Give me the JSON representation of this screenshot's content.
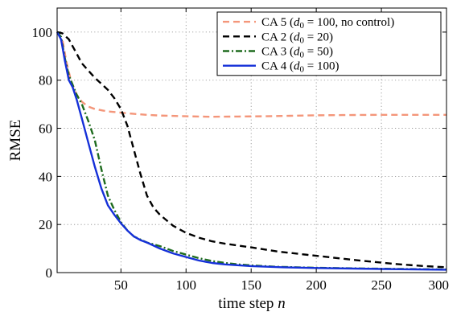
{
  "chart_data": {
    "type": "line",
    "xlabel": "time step n",
    "ylabel": "RMSE",
    "xlim": [
      1,
      300
    ],
    "ylim": [
      0,
      110
    ],
    "x_ticks": [
      50,
      100,
      150,
      200,
      250,
      300
    ],
    "y_ticks": [
      0,
      20,
      40,
      60,
      80,
      100
    ],
    "grid": true,
    "legend_position": "top-right",
    "series": [
      {
        "name": "CA 5 (d0 = 100, no control)",
        "legend_main": "CA 5 (",
        "legend_sub": "d",
        "legend_subscript": "0",
        "legend_rest": " = 100, no control)",
        "color": "#f4967a",
        "style": "dashed",
        "points": [
          [
            1,
            100
          ],
          [
            5,
            97
          ],
          [
            8,
            88
          ],
          [
            12,
            79
          ],
          [
            16,
            74
          ],
          [
            20,
            71
          ],
          [
            25,
            69
          ],
          [
            30,
            68
          ],
          [
            40,
            67
          ],
          [
            50,
            66.5
          ],
          [
            60,
            66
          ],
          [
            70,
            65.6
          ],
          [
            80,
            65.3
          ],
          [
            100,
            65
          ],
          [
            120,
            64.8
          ],
          [
            140,
            64.9
          ],
          [
            160,
            65
          ],
          [
            180,
            65.2
          ],
          [
            200,
            65.4
          ],
          [
            220,
            65.5
          ],
          [
            250,
            65.6
          ],
          [
            280,
            65.6
          ],
          [
            300,
            65.6
          ]
        ]
      },
      {
        "name": "CA 2 (d0 = 20)",
        "legend_main": "CA 2 (",
        "legend_sub": "d",
        "legend_subscript": "0",
        "legend_rest": " = 20)",
        "color": "#000000",
        "style": "dashed",
        "points": [
          [
            1,
            100
          ],
          [
            5,
            99.5
          ],
          [
            10,
            97
          ],
          [
            15,
            92
          ],
          [
            20,
            87
          ],
          [
            25,
            84
          ],
          [
            30,
            81
          ],
          [
            35,
            78.5
          ],
          [
            40,
            76
          ],
          [
            45,
            72.5
          ],
          [
            50,
            68
          ],
          [
            55,
            61
          ],
          [
            60,
            51
          ],
          [
            65,
            41
          ],
          [
            70,
            32
          ],
          [
            75,
            27
          ],
          [
            80,
            24
          ],
          [
            90,
            19.5
          ],
          [
            100,
            16.5
          ],
          [
            110,
            14.5
          ],
          [
            120,
            13
          ],
          [
            130,
            12
          ],
          [
            150,
            10.5
          ],
          [
            170,
            8.8
          ],
          [
            200,
            7
          ],
          [
            230,
            5.2
          ],
          [
            260,
            3.6
          ],
          [
            280,
            2.8
          ],
          [
            300,
            2.2
          ]
        ]
      },
      {
        "name": "CA 3 (d0 = 50)",
        "legend_main": "CA 3 (",
        "legend_sub": "d",
        "legend_subscript": "0",
        "legend_rest": " = 50)",
        "color": "#1e6b1e",
        "style": "dashdot",
        "points": [
          [
            1,
            100
          ],
          [
            4,
            98
          ],
          [
            7,
            89
          ],
          [
            10,
            82
          ],
          [
            13,
            78
          ],
          [
            16,
            74
          ],
          [
            20,
            70
          ],
          [
            25,
            63
          ],
          [
            30,
            55
          ],
          [
            35,
            43
          ],
          [
            40,
            32
          ],
          [
            45,
            26
          ],
          [
            50,
            21
          ],
          [
            55,
            17.5
          ],
          [
            60,
            15
          ],
          [
            70,
            12.5
          ],
          [
            80,
            11
          ],
          [
            90,
            9
          ],
          [
            100,
            7.5
          ],
          [
            110,
            6
          ],
          [
            120,
            4.8
          ],
          [
            130,
            4
          ],
          [
            140,
            3.4
          ],
          [
            150,
            3
          ],
          [
            170,
            2.4
          ],
          [
            200,
            2
          ],
          [
            250,
            1.6
          ],
          [
            300,
            1.3
          ]
        ]
      },
      {
        "name": "CA 4 (d0 = 100)",
        "legend_main": "CA 4 (",
        "legend_sub": "d",
        "legend_subscript": "0",
        "legend_rest": " = 100)",
        "color": "#1530d8",
        "style": "solid",
        "points": [
          [
            1,
            100
          ],
          [
            4,
            97
          ],
          [
            7,
            88
          ],
          [
            10,
            80
          ],
          [
            13,
            77
          ],
          [
            16,
            72
          ],
          [
            20,
            64
          ],
          [
            25,
            54
          ],
          [
            30,
            44
          ],
          [
            35,
            35
          ],
          [
            40,
            28
          ],
          [
            45,
            24
          ],
          [
            50,
            20.5
          ],
          [
            55,
            17.5
          ],
          [
            60,
            15
          ],
          [
            65,
            13.5
          ],
          [
            70,
            12.5
          ],
          [
            80,
            10
          ],
          [
            90,
            8
          ],
          [
            100,
            6.5
          ],
          [
            110,
            5
          ],
          [
            120,
            4
          ],
          [
            130,
            3.4
          ],
          [
            150,
            2.7
          ],
          [
            175,
            2.2
          ],
          [
            200,
            1.9
          ],
          [
            250,
            1.5
          ],
          [
            300,
            1.2
          ]
        ]
      }
    ]
  }
}
